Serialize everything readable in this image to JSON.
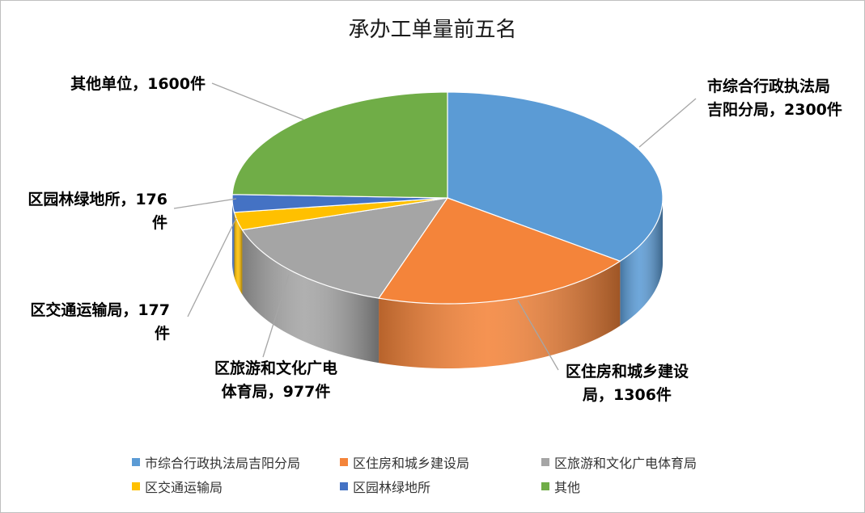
{
  "chart_data": {
    "type": "pie",
    "title": "承办工单量前五名",
    "unit": "件",
    "slices": [
      {
        "name": "市综合行政执法局吉阳分局",
        "value": 2300,
        "label_lines": [
          "市综合行政执法局",
          "吉阳分局，2300件"
        ],
        "color": "#5b9bd5",
        "side": "#203a55"
      },
      {
        "name": "区住房和城乡建设局",
        "value": 1306,
        "label_lines": [
          "区住房和城乡建设",
          "局，1306件"
        ],
        "color": "#f4843a",
        "side": "#b4521a"
      },
      {
        "name": "区旅游和文化广电体育局",
        "value": 977,
        "label_lines": [
          "区旅游和文化广电",
          "体育局，977件"
        ],
        "color": "#a5a5a5",
        "side": "#6b6b6b"
      },
      {
        "name": "区交通运输局",
        "value": 177,
        "label_lines": [
          "区交通运输局，177",
          "件"
        ],
        "color": "#ffc000",
        "side": "#b58700"
      },
      {
        "name": "区园林绿地所",
        "value": 176,
        "label_lines": [
          "区园林绿地所，176",
          "件"
        ],
        "color": "#4472c4",
        "side": "#2a4a85"
      },
      {
        "name": "其他",
        "value": 1600,
        "label_lines": [
          "其他单位，1600件"
        ],
        "color": "#70ad47",
        "side": "#4a7a2d"
      }
    ],
    "legend_position": "bottom"
  }
}
